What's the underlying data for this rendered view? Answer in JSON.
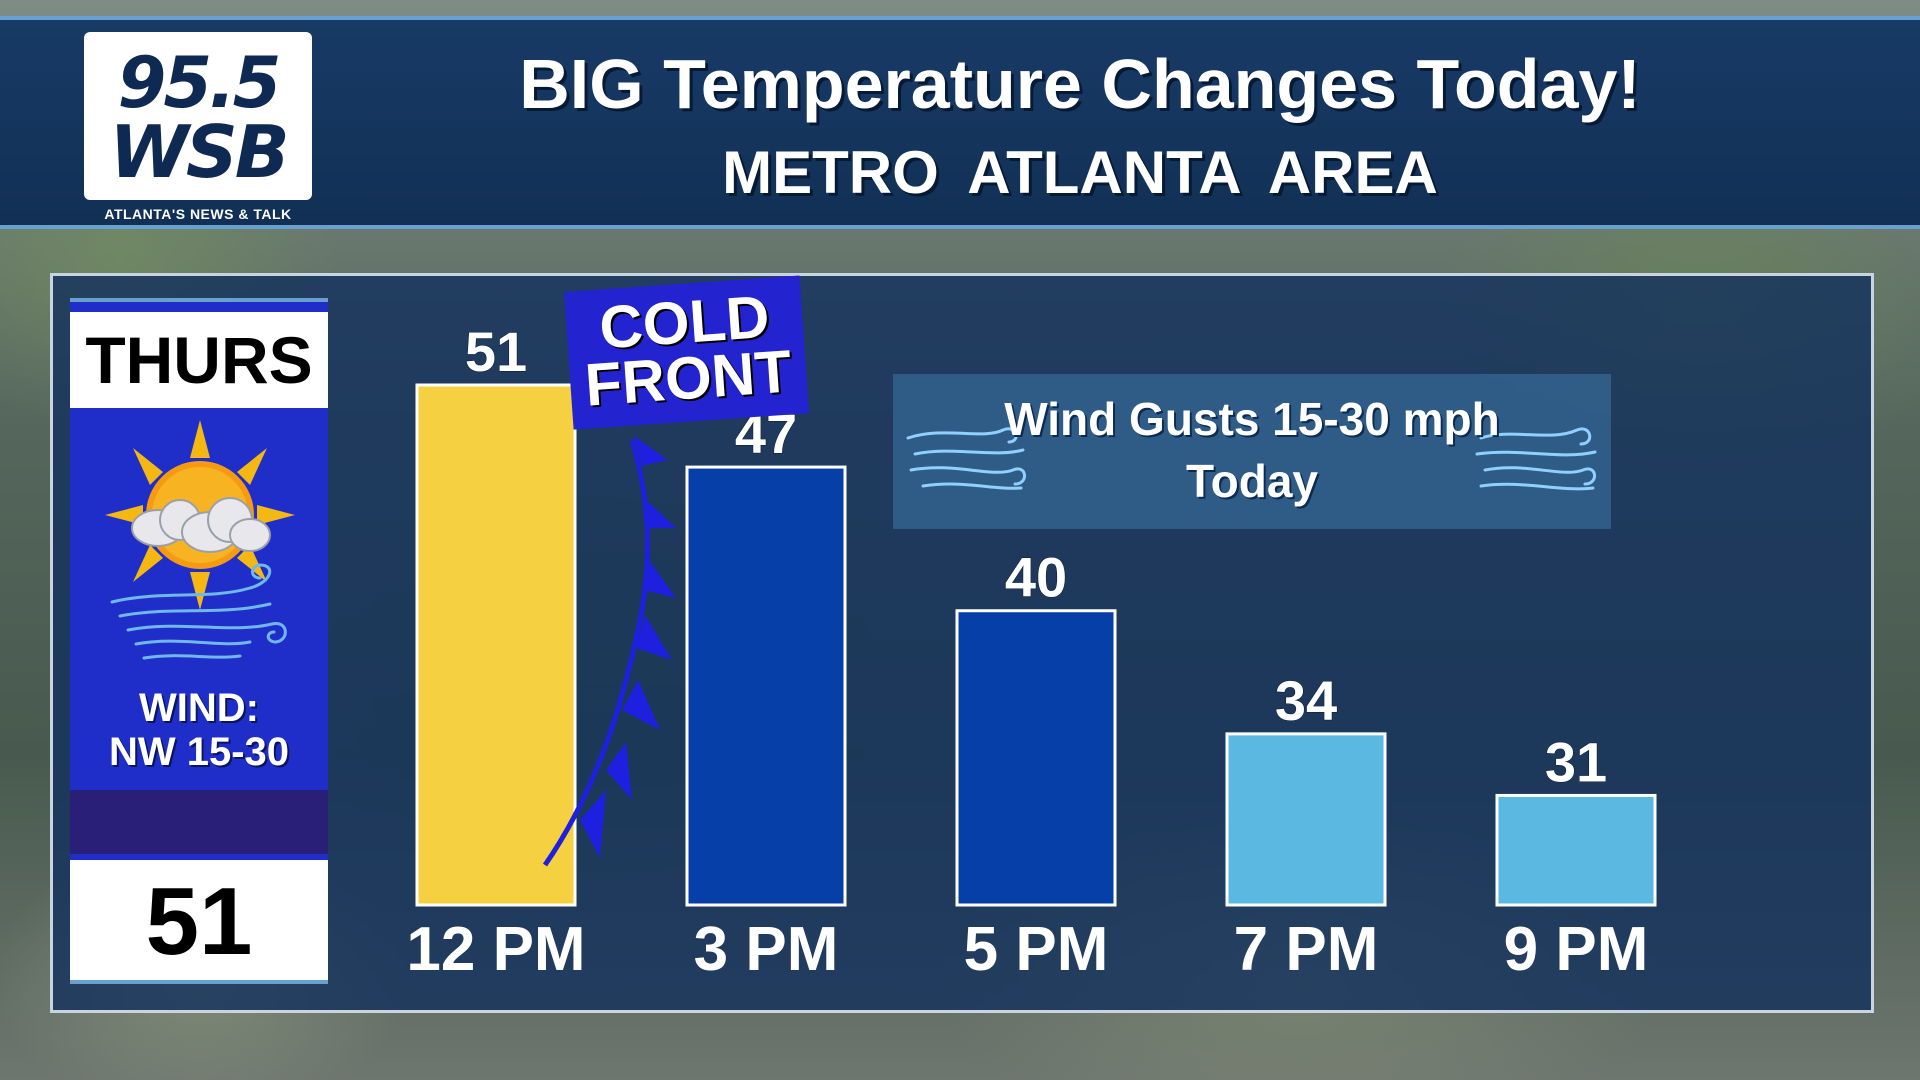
{
  "header": {
    "logo_frequency": "95.5",
    "logo_callsign": "WSB",
    "logo_tagline": "ATLANTA'S NEWS & TALK",
    "title": "BIG Temperature Changes Today!",
    "subtitle": "METRO ATLANTA AREA"
  },
  "sidebar": {
    "day": "THURS",
    "icon": "sun-cloud-wind-icon",
    "wind_line1": "WIND:",
    "wind_line2": "NW 15-30",
    "high": "51"
  },
  "cold_front": {
    "line1": "COLD",
    "line2": "FRONT",
    "color": "#1f1fe0"
  },
  "wind_note": {
    "line1": "Wind Gusts 15-30 mph",
    "line2": "Today"
  },
  "colors": {
    "warm": "#f5d040",
    "cool": "#073fa8",
    "cold": "#5bb8e0"
  },
  "chart_data": {
    "type": "bar",
    "categories": [
      "12 PM",
      "3 PM",
      "5 PM",
      "7 PM",
      "9 PM"
    ],
    "values": [
      51,
      47,
      40,
      34,
      31
    ],
    "value_labels": [
      "51",
      "47",
      "40",
      "34",
      "31"
    ],
    "bar_colors": [
      "#f5d040",
      "#073fa8",
      "#073fa8",
      "#5bb8e0",
      "#5bb8e0"
    ],
    "title": "BIG Temperature Changes Today!",
    "subtitle": "METRO ATLANTA AREA",
    "xlabel": "",
    "ylabel": "",
    "ylim": [
      28,
      51
    ],
    "grid": false,
    "legend": "none"
  }
}
